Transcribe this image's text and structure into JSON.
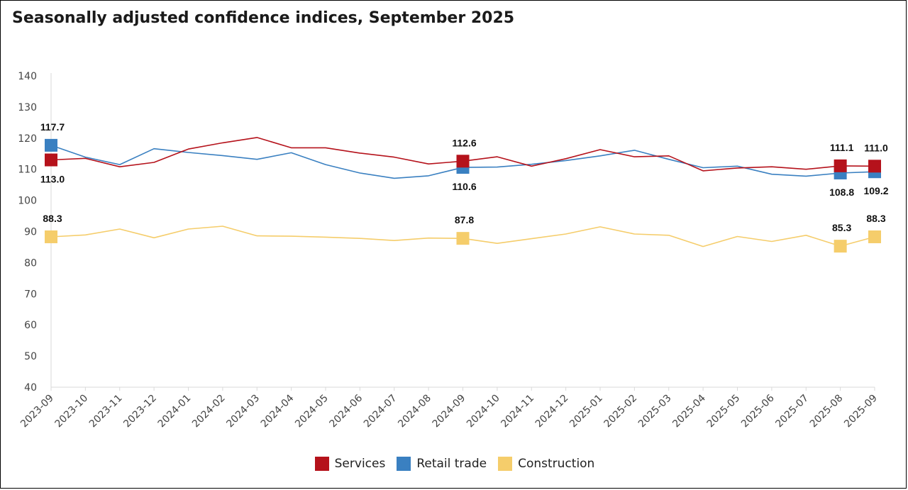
{
  "chart_data": {
    "type": "line",
    "title": "Seasonally adjusted confidence indices, September 2025",
    "xlabel": "",
    "ylabel": "",
    "ylim": [
      40,
      140
    ],
    "yticks": [
      "140",
      "130",
      "120",
      "110",
      "100",
      "90",
      "80",
      "70",
      "60",
      "50",
      "40"
    ],
    "categories": [
      "2023-09",
      "2023-10",
      "2023-11",
      "2023-12",
      "2024-01",
      "2024-02",
      "2024-03",
      "2024-04",
      "2024-05",
      "2024-06",
      "2024-07",
      "2024-08",
      "2024-09",
      "2024-10",
      "2024-11",
      "2024-12",
      "2025-01",
      "2025-02",
      "2025-03",
      "2025-04",
      "2025-05",
      "2025-06",
      "2025-07",
      "2025-08",
      "2025-09"
    ],
    "series": [
      {
        "name": "Services",
        "color": "#B5121B",
        "values": [
          113.0,
          113.5,
          110.8,
          112.2,
          116.5,
          118.5,
          120.2,
          116.9,
          116.9,
          115.2,
          113.9,
          111.7,
          112.6,
          114.0,
          111.0,
          113.4,
          116.3,
          114.0,
          114.3,
          109.5,
          110.4,
          110.8,
          110.0,
          111.1,
          111.0
        ]
      },
      {
        "name": "Retail trade",
        "color": "#3A80C1",
        "values": [
          117.7,
          113.9,
          111.5,
          116.6,
          115.4,
          114.4,
          113.2,
          115.3,
          111.5,
          108.8,
          107.1,
          107.9,
          110.6,
          110.7,
          111.6,
          112.8,
          114.3,
          116.1,
          113.2,
          110.5,
          111.0,
          108.4,
          107.8,
          108.8,
          109.2
        ]
      },
      {
        "name": "Construction",
        "color": "#F5CD6B",
        "values": [
          88.3,
          88.9,
          90.8,
          88.0,
          90.8,
          91.7,
          88.6,
          88.5,
          88.2,
          87.8,
          87.1,
          87.9,
          87.8,
          86.2,
          87.7,
          89.2,
          91.5,
          89.2,
          88.8,
          85.2,
          88.4,
          86.8,
          88.8,
          85.3,
          88.3
        ]
      }
    ],
    "data_labels": [
      {
        "series": "Retail trade",
        "category": "2023-09",
        "text": "117.7",
        "placement": "above"
      },
      {
        "series": "Services",
        "category": "2023-09",
        "text": "113.0",
        "placement": "below"
      },
      {
        "series": "Construction",
        "category": "2023-09",
        "text": "88.3",
        "placement": "above"
      },
      {
        "series": "Services",
        "category": "2024-09",
        "text": "112.6",
        "placement": "above"
      },
      {
        "series": "Retail trade",
        "category": "2024-09",
        "text": "110.6",
        "placement": "below"
      },
      {
        "series": "Construction",
        "category": "2024-09",
        "text": "87.8",
        "placement": "above"
      },
      {
        "series": "Services",
        "category": "2025-08",
        "text": "111.1",
        "placement": "above"
      },
      {
        "series": "Retail trade",
        "category": "2025-08",
        "text": "108.8",
        "placement": "below"
      },
      {
        "series": "Construction",
        "category": "2025-08",
        "text": "85.3",
        "placement": "above"
      },
      {
        "series": "Services",
        "category": "2025-09",
        "text": "111.0",
        "placement": "above"
      },
      {
        "series": "Retail trade",
        "category": "2025-09",
        "text": "109.2",
        "placement": "below"
      },
      {
        "series": "Construction",
        "category": "2025-09",
        "text": "88.3",
        "placement": "above"
      }
    ],
    "marked_categories": [
      "2023-09",
      "2024-09",
      "2025-08",
      "2025-09"
    ],
    "legend_position": "bottom-center",
    "grid": false
  }
}
